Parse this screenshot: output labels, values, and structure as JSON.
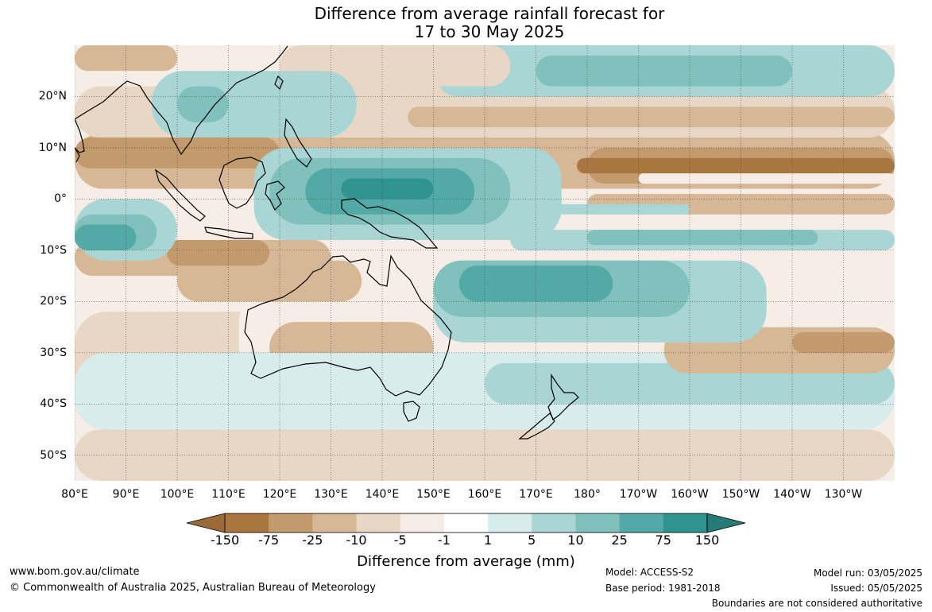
{
  "title": {
    "line1": "Difference from average rainfall forecast for",
    "line2": "17 to 30 May 2025"
  },
  "map": {
    "extent": {
      "lon_min": 80,
      "lon_max": 240,
      "lat_min": -55,
      "lat_max": 30
    },
    "lat_labels": [
      {
        "lat": 20,
        "text": "20°N"
      },
      {
        "lat": 10,
        "text": "10°N"
      },
      {
        "lat": 0,
        "text": "0°"
      },
      {
        "lat": -10,
        "text": "10°S"
      },
      {
        "lat": -20,
        "text": "20°S"
      },
      {
        "lat": -30,
        "text": "30°S"
      },
      {
        "lat": -40,
        "text": "40°S"
      },
      {
        "lat": -50,
        "text": "50°S"
      }
    ],
    "lon_labels": [
      {
        "lon": 80,
        "text": "80°E"
      },
      {
        "lon": 90,
        "text": "90°E"
      },
      {
        "lon": 100,
        "text": "100°E"
      },
      {
        "lon": 110,
        "text": "110°E"
      },
      {
        "lon": 120,
        "text": "120°E"
      },
      {
        "lon": 130,
        "text": "130°E"
      },
      {
        "lon": 140,
        "text": "140°E"
      },
      {
        "lon": 150,
        "text": "150°E"
      },
      {
        "lon": 160,
        "text": "160°E"
      },
      {
        "lon": 170,
        "text": "170°E"
      },
      {
        "lon": 180,
        "text": "180°"
      },
      {
        "lon": 190,
        "text": "170°W"
      },
      {
        "lon": 200,
        "text": "160°W"
      },
      {
        "lon": 210,
        "text": "150°W"
      },
      {
        "lon": 220,
        "text": "140°W"
      },
      {
        "lon": 230,
        "text": "130°W"
      }
    ],
    "colors": {
      "dry3": "#a97540",
      "dry2": "#c39a6c",
      "dry1": "#d6b796",
      "dry0": "#e9d7c5",
      "neutral_dry": "#f5ede6",
      "neutral": "#ffffff",
      "neutral_wet": "#d9ecec",
      "wet0": "#a9d6d4",
      "wet1": "#80c1bd",
      "wet2": "#52a9a5",
      "wet3": "#2f938f",
      "coast": "#000000"
    }
  },
  "colorbar": {
    "colors": [
      "#a97540",
      "#c39a6c",
      "#d6b796",
      "#e9d7c5",
      "#f5ede6",
      "#ffffff",
      "#d9ecec",
      "#a9d6d4",
      "#80c1bd",
      "#52a9a5",
      "#2f938f"
    ],
    "end_low_color": "#9b6a38",
    "end_high_color": "#267a77",
    "labels": [
      "-150",
      "-75",
      "-25",
      "-10",
      "-5",
      "-1",
      "1",
      "5",
      "10",
      "25",
      "75",
      "150"
    ],
    "title": "Difference from average (mm)"
  },
  "footer": {
    "website": "www.bom.gov.au/climate",
    "copyright": "© Commonwealth of Australia 2025, Australian Bureau of Meteorology",
    "model": "Model: ACCESS-S2",
    "base_period": "Base period: 1981-2018",
    "model_run": "Model run: 03/05/2025",
    "issued": "Issued: 05/05/2025",
    "disclaimer": "Boundaries are not considered authoritative"
  }
}
